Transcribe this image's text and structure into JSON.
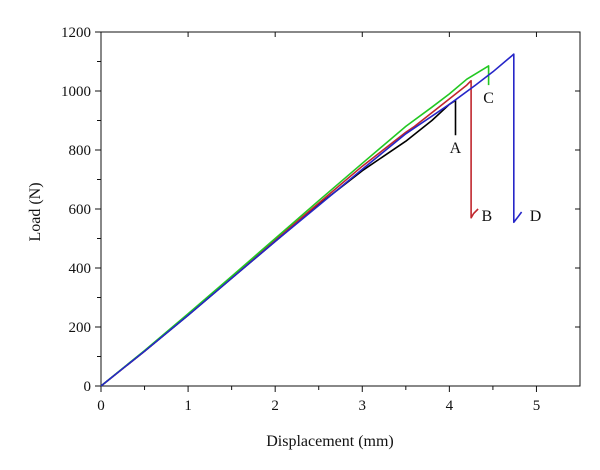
{
  "chart_data": {
    "type": "line",
    "title": "",
    "xlabel": "Displacement (mm)",
    "ylabel": "Load (N)",
    "xlim": [
      0,
      5.5
    ],
    "ylim": [
      0,
      1200
    ],
    "x_ticks": [
      0,
      1,
      2,
      3,
      4,
      5
    ],
    "y_ticks": [
      0,
      200,
      400,
      600,
      800,
      1000,
      1200
    ],
    "grid": false,
    "legend": "none",
    "series": [
      {
        "name": "A",
        "color": "#000000",
        "x": [
          0,
          0.5,
          1.0,
          1.5,
          2.0,
          2.5,
          3.0,
          3.5,
          3.8,
          4.0,
          4.07,
          4.07
        ],
        "y": [
          0,
          118,
          240,
          365,
          490,
          615,
          730,
          830,
          900,
          955,
          968,
          850
        ]
      },
      {
        "name": "B",
        "color": "#c0272d",
        "x": [
          0,
          0.5,
          1.0,
          1.5,
          2.0,
          2.5,
          3.0,
          3.5,
          3.6,
          3.9,
          4.2,
          4.25,
          4.25,
          4.28,
          4.33
        ],
        "y": [
          0,
          118,
          242,
          368,
          495,
          620,
          745,
          860,
          880,
          950,
          1020,
          1035,
          570,
          585,
          600
        ]
      },
      {
        "name": "C",
        "color": "#22c822",
        "x": [
          0,
          0.5,
          1.0,
          1.5,
          2.0,
          2.5,
          3.0,
          3.5,
          3.8,
          4.0,
          4.2,
          4.45,
          4.45
        ],
        "y": [
          0,
          120,
          245,
          372,
          500,
          628,
          755,
          880,
          945,
          990,
          1040,
          1085,
          1020
        ]
      },
      {
        "name": "D",
        "color": "#2626c8",
        "x": [
          0,
          0.5,
          1.0,
          1.5,
          2.0,
          2.5,
          3.0,
          3.5,
          4.0,
          4.3,
          4.5,
          4.72,
          4.74,
          4.74,
          4.78,
          4.83
        ],
        "y": [
          0,
          118,
          240,
          365,
          490,
          612,
          735,
          855,
          955,
          1020,
          1065,
          1120,
          1125,
          555,
          570,
          590
        ]
      }
    ],
    "annotations": [
      {
        "text": "A",
        "x": 4.07,
        "y": 810
      },
      {
        "text": "B",
        "x": 4.43,
        "y": 580
      },
      {
        "text": "C",
        "x": 4.45,
        "y": 980
      },
      {
        "text": "D",
        "x": 4.99,
        "y": 580
      }
    ]
  }
}
